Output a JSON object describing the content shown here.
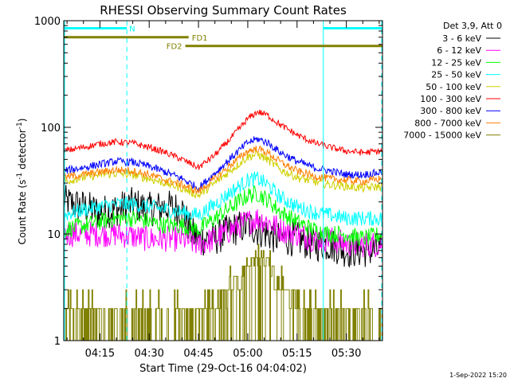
{
  "chart_data": {
    "type": "line",
    "title": "RHESSI Observing Summary Count Rates",
    "xlabel": "Start Time (29-Oct-16 04:04:02)",
    "ylabel_main": "Count Rate (s",
    "ylabel_sup1": "-1",
    "ylabel_mid": " detector",
    "ylabel_sup2": "-1",
    "ylabel_end": ")",
    "y_scale": "log",
    "ylim": [
      1,
      1000
    ],
    "xlim_minutes": [
      4.0,
      101.0
    ],
    "x_ticks": [
      {
        "minute": 15,
        "label": "04:15"
      },
      {
        "minute": 30,
        "label": "04:30"
      },
      {
        "minute": 45,
        "label": "04:45"
      },
      {
        "minute": 60,
        "label": "05:00"
      },
      {
        "minute": 75,
        "label": "05:15"
      },
      {
        "minute": 90,
        "label": "05:30"
      }
    ],
    "y_ticks": [
      {
        "value": 1,
        "label": "1"
      },
      {
        "value": 10,
        "label": "10"
      },
      {
        "value": 100,
        "label": "100"
      },
      {
        "value": 1000,
        "label": "1000"
      }
    ],
    "legend_header": "Det 3,9, Att 0",
    "legend_position": "right",
    "timestamp": "1-Sep-2022 15:20",
    "annotations": [
      {
        "label": "N",
        "type": "night",
        "start": 4.0,
        "end": 23.2,
        "level": 850,
        "color": "#00ffff"
      },
      {
        "label": "N",
        "type": "night",
        "start": 83.0,
        "end": 101.0,
        "level": 850,
        "color": "#00ffff"
      },
      {
        "label": "FD1",
        "type": "bar",
        "start": 4.0,
        "end": 42.0,
        "level": 700,
        "color": "#808000"
      },
      {
        "label": "FD2",
        "type": "bar",
        "start": 41.0,
        "end": 101.0,
        "level": 580,
        "color": "#808000"
      }
    ],
    "vlines_solid": [
      4.0,
      83.0
    ],
    "vlines_dashed": [
      23.2,
      101.0
    ],
    "vline_color": "#00ffff",
    "series": [
      {
        "name": "3 - 6 keV",
        "color": "#000000",
        "points": [
          [
            4,
            20
          ],
          [
            10,
            18
          ],
          [
            15,
            16
          ],
          [
            20,
            17
          ],
          [
            25,
            19
          ],
          [
            30,
            17
          ],
          [
            35,
            18
          ],
          [
            40,
            17
          ],
          [
            43,
            10
          ],
          [
            45,
            9
          ],
          [
            50,
            9
          ],
          [
            55,
            11
          ],
          [
            60,
            12
          ],
          [
            63,
            11
          ],
          [
            66,
            10
          ],
          [
            70,
            9
          ],
          [
            75,
            9
          ],
          [
            80,
            8
          ],
          [
            85,
            8
          ],
          [
            90,
            7
          ],
          [
            95,
            7
          ],
          [
            101,
            7
          ]
        ],
        "noise": 0.16
      },
      {
        "name": "6 - 12 keV",
        "color": "#ff00ff",
        "points": [
          [
            4,
            10
          ],
          [
            10,
            10
          ],
          [
            20,
            10
          ],
          [
            30,
            9
          ],
          [
            40,
            9
          ],
          [
            45,
            8
          ],
          [
            50,
            9
          ],
          [
            55,
            11
          ],
          [
            60,
            13
          ],
          [
            63,
            14
          ],
          [
            66,
            13
          ],
          [
            70,
            11
          ],
          [
            75,
            10
          ],
          [
            80,
            9
          ],
          [
            85,
            9
          ],
          [
            90,
            8
          ],
          [
            95,
            8
          ],
          [
            101,
            8
          ]
        ],
        "noise": 0.12
      },
      {
        "name": "12 - 25 keV",
        "color": "#00ff00",
        "points": [
          [
            4,
            11
          ],
          [
            10,
            12
          ],
          [
            15,
            13
          ],
          [
            20,
            14
          ],
          [
            25,
            14
          ],
          [
            30,
            13
          ],
          [
            35,
            12
          ],
          [
            40,
            12
          ],
          [
            45,
            11
          ],
          [
            50,
            14
          ],
          [
            55,
            18
          ],
          [
            60,
            23
          ],
          [
            63,
            24
          ],
          [
            66,
            21
          ],
          [
            70,
            16
          ],
          [
            75,
            13
          ],
          [
            80,
            11
          ],
          [
            85,
            10
          ],
          [
            90,
            10
          ],
          [
            95,
            9
          ],
          [
            101,
            10
          ]
        ],
        "noise": 0.08
      },
      {
        "name": "25 - 50 keV",
        "color": "#00ffff",
        "points": [
          [
            4,
            15
          ],
          [
            10,
            17
          ],
          [
            15,
            18
          ],
          [
            20,
            19
          ],
          [
            25,
            19
          ],
          [
            30,
            18
          ],
          [
            35,
            17
          ],
          [
            40,
            16
          ],
          [
            45,
            15
          ],
          [
            50,
            19
          ],
          [
            55,
            25
          ],
          [
            60,
            32
          ],
          [
            63,
            33
          ],
          [
            66,
            29
          ],
          [
            70,
            22
          ],
          [
            75,
            18
          ],
          [
            80,
            16
          ],
          [
            85,
            15
          ],
          [
            90,
            14
          ],
          [
            95,
            14
          ],
          [
            101,
            14
          ]
        ],
        "noise": 0.07
      },
      {
        "name": "50 - 100 keV",
        "color": "#d0d000",
        "points": [
          [
            4,
            31
          ],
          [
            10,
            34
          ],
          [
            15,
            36
          ],
          [
            20,
            37
          ],
          [
            25,
            36
          ],
          [
            30,
            33
          ],
          [
            35,
            30
          ],
          [
            40,
            27
          ],
          [
            45,
            23
          ],
          [
            50,
            30
          ],
          [
            55,
            40
          ],
          [
            60,
            53
          ],
          [
            63,
            56
          ],
          [
            66,
            50
          ],
          [
            70,
            40
          ],
          [
            75,
            34
          ],
          [
            80,
            31
          ],
          [
            85,
            29
          ],
          [
            90,
            28
          ],
          [
            95,
            27
          ],
          [
            101,
            28
          ]
        ],
        "noise": 0.04
      },
      {
        "name": "100 - 300 keV",
        "color": "#ff0000",
        "points": [
          [
            4,
            60
          ],
          [
            10,
            65
          ],
          [
            15,
            70
          ],
          [
            20,
            73
          ],
          [
            25,
            71
          ],
          [
            30,
            65
          ],
          [
            35,
            58
          ],
          [
            40,
            50
          ],
          [
            45,
            42
          ],
          [
            50,
            55
          ],
          [
            55,
            80
          ],
          [
            60,
            120
          ],
          [
            63,
            140
          ],
          [
            66,
            130
          ],
          [
            70,
            105
          ],
          [
            75,
            85
          ],
          [
            80,
            72
          ],
          [
            85,
            65
          ],
          [
            90,
            60
          ],
          [
            95,
            58
          ],
          [
            101,
            60
          ]
        ],
        "noise": 0.03
      },
      {
        "name": "300 - 800 keV",
        "color": "#0000ff",
        "points": [
          [
            4,
            39
          ],
          [
            10,
            42
          ],
          [
            15,
            45
          ],
          [
            20,
            48
          ],
          [
            25,
            47
          ],
          [
            30,
            43
          ],
          [
            35,
            38
          ],
          [
            40,
            33
          ],
          [
            45,
            27
          ],
          [
            50,
            37
          ],
          [
            55,
            52
          ],
          [
            60,
            72
          ],
          [
            63,
            78
          ],
          [
            66,
            72
          ],
          [
            70,
            58
          ],
          [
            75,
            48
          ],
          [
            80,
            42
          ],
          [
            85,
            39
          ],
          [
            90,
            36
          ],
          [
            95,
            36
          ],
          [
            101,
            38
          ]
        ],
        "noise": 0.035
      },
      {
        "name": "800 - 7000 keV",
        "color": "#ff8000",
        "points": [
          [
            4,
            34
          ],
          [
            10,
            36
          ],
          [
            15,
            38
          ],
          [
            20,
            40
          ],
          [
            25,
            39
          ],
          [
            30,
            36
          ],
          [
            35,
            32
          ],
          [
            40,
            29
          ],
          [
            45,
            25
          ],
          [
            50,
            33
          ],
          [
            55,
            45
          ],
          [
            60,
            60
          ],
          [
            63,
            63
          ],
          [
            66,
            58
          ],
          [
            70,
            47
          ],
          [
            75,
            39
          ],
          [
            80,
            35
          ],
          [
            85,
            33
          ],
          [
            90,
            32
          ],
          [
            95,
            31
          ],
          [
            101,
            33
          ]
        ],
        "noise": 0.035
      },
      {
        "name": "7000 - 15000 keV",
        "color": "#808000",
        "points": [
          [
            4,
            1.6
          ],
          [
            20,
            1.6
          ],
          [
            30,
            1.5
          ],
          [
            40,
            1.5
          ],
          [
            45,
            1.5
          ],
          [
            50,
            1.9
          ],
          [
            55,
            3.0
          ],
          [
            60,
            5.2
          ],
          [
            63,
            6.0
          ],
          [
            66,
            5.2
          ],
          [
            70,
            3.2
          ],
          [
            75,
            2.0
          ],
          [
            80,
            1.6
          ],
          [
            90,
            1.5
          ],
          [
            101,
            1.5
          ]
        ],
        "noise": 0.0,
        "quantized": true
      }
    ]
  }
}
